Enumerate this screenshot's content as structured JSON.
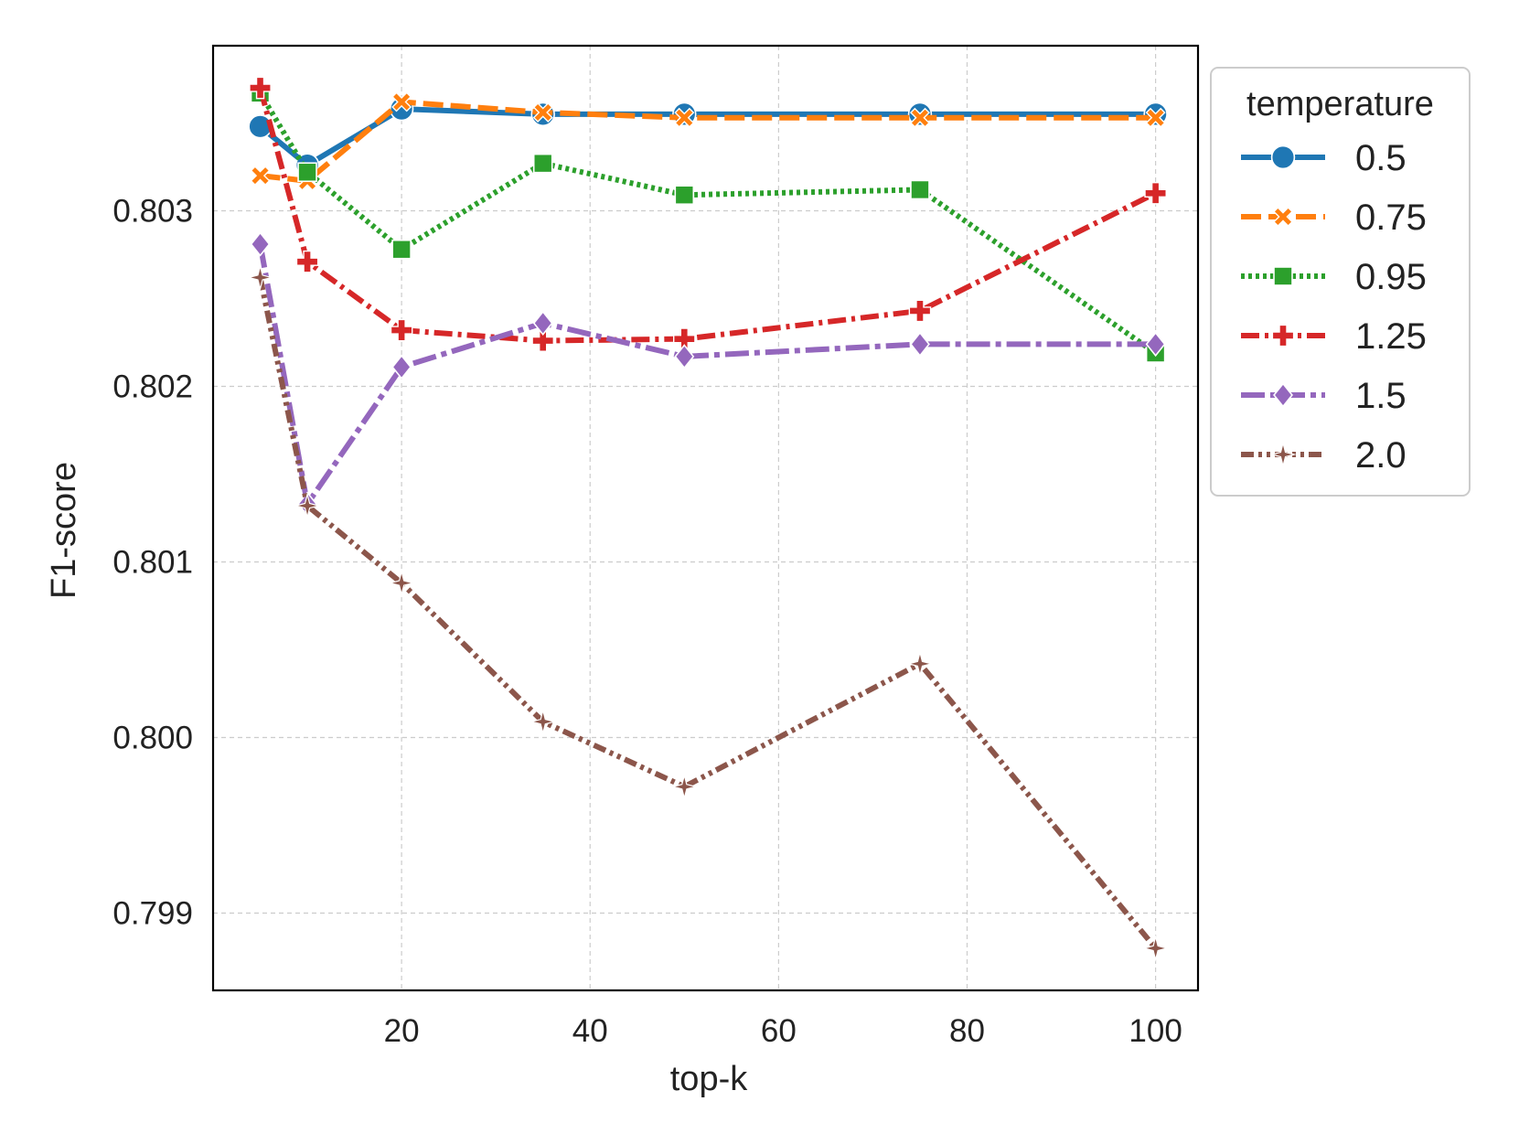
{
  "chart_data": {
    "type": "line",
    "title": "",
    "xlabel": "top-k",
    "ylabel": "F1-score",
    "xlim": [
      0,
      104.5
    ],
    "ylim": [
      0.79856,
      0.80394
    ],
    "xticks": [
      20,
      40,
      60,
      80,
      100
    ],
    "xtick_labels": [
      "20",
      "40",
      "60",
      "80",
      "100"
    ],
    "yticks": [
      0.799,
      0.8,
      0.801,
      0.802,
      0.803
    ],
    "ytick_labels": [
      "0.799",
      "0.800",
      "0.801",
      "0.802",
      "0.803"
    ],
    "grid": true,
    "legend": {
      "title": "temperature",
      "position": "outside-top-right"
    },
    "x": [
      5,
      10,
      20,
      35,
      50,
      75,
      100
    ],
    "series": [
      {
        "name": "0.5",
        "color": "#1f77b4",
        "dash": "solid",
        "marker": "circle",
        "values": [
          0.80348,
          0.80326,
          0.80358,
          0.80355,
          0.80355,
          0.80355,
          0.80355
        ]
      },
      {
        "name": "0.75",
        "color": "#ff7f0e",
        "dash": "dashed",
        "marker": "x",
        "values": [
          0.8032,
          0.80317,
          0.80362,
          0.80356,
          0.80353,
          0.80353,
          0.80353
        ]
      },
      {
        "name": "0.95",
        "color": "#2ca02c",
        "dash": "dotted",
        "marker": "square",
        "values": [
          0.80367,
          0.80322,
          0.80278,
          0.80327,
          0.80309,
          0.80312,
          0.80219
        ]
      },
      {
        "name": "1.25",
        "color": "#d62728",
        "dash": "dashdot",
        "marker": "plus",
        "values": [
          0.8037,
          0.80271,
          0.80232,
          0.80226,
          0.80227,
          0.80243,
          0.8031
        ]
      },
      {
        "name": "1.5",
        "color": "#9467bd",
        "dash": "dashdot2",
        "marker": "diamond",
        "values": [
          0.80281,
          0.80133,
          0.80211,
          0.80236,
          0.80217,
          0.80224,
          0.80224
        ]
      },
      {
        "name": "2.0",
        "color": "#8c564b",
        "dash": "dashdotdot",
        "marker": "star",
        "values": [
          0.80262,
          0.80132,
          0.80088,
          0.80009,
          0.79972,
          0.80042,
          0.7988
        ]
      }
    ]
  }
}
